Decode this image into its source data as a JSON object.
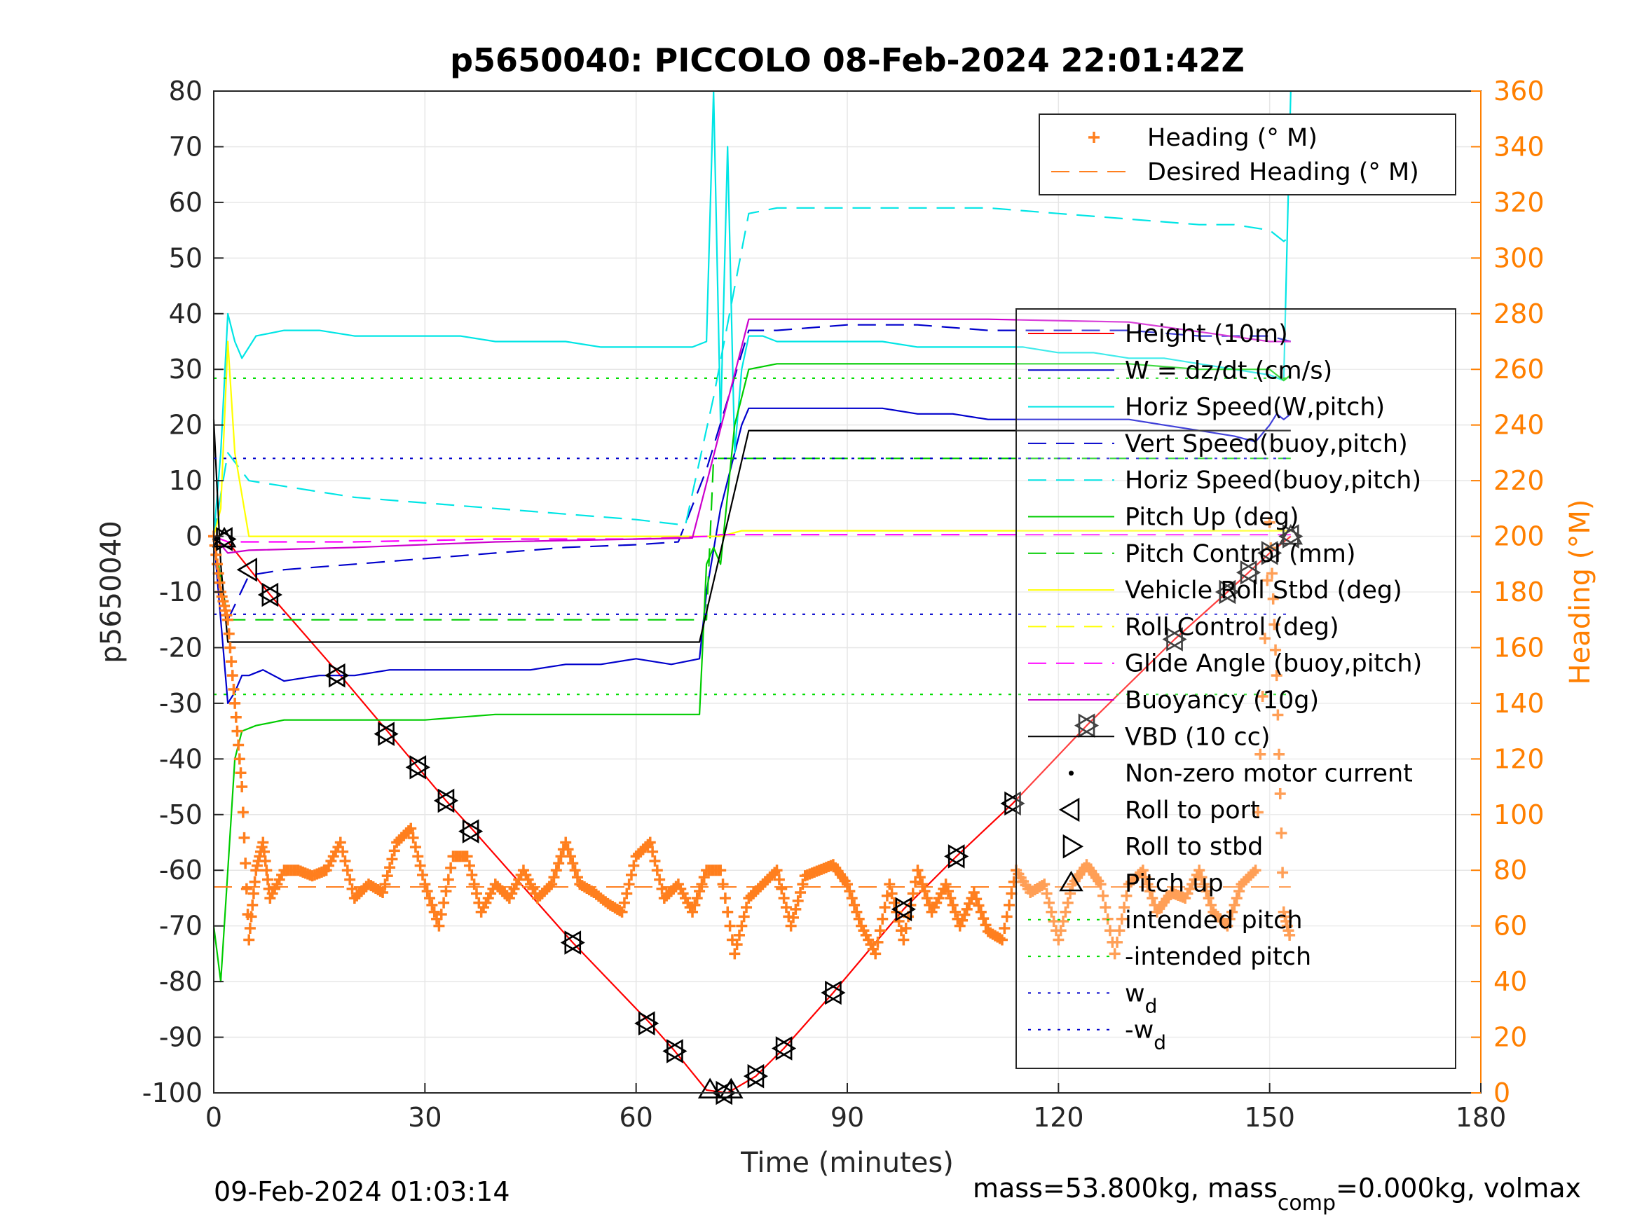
{
  "chart_data": {
    "type": "line",
    "title": "p5650040: PICCOLO 08-Feb-2024 22:01:42Z",
    "xlabel": "Time (minutes)",
    "ylabel": "p5650040",
    "ylabel_right": "Heading (°M)",
    "xlim": [
      0,
      180
    ],
    "ylim": [
      -100,
      80
    ],
    "ylim_right": [
      0,
      360
    ],
    "xticks": [
      "0",
      "30",
      "60",
      "90",
      "120",
      "150",
      "180"
    ],
    "yticks": [
      "-100",
      "-90",
      "-80",
      "-70",
      "-60",
      "-50",
      "-40",
      "-30",
      "-20",
      "-10",
      "0",
      "10",
      "20",
      "30",
      "40",
      "50",
      "60",
      "70",
      "80"
    ],
    "yticks_right": [
      "0",
      "20",
      "40",
      "60",
      "80",
      "100",
      "120",
      "140",
      "160",
      "180",
      "200",
      "220",
      "240",
      "260",
      "280",
      "300",
      "320",
      "340",
      "360"
    ],
    "grid": true,
    "legend_heading": [
      {
        "label": "Heading (° M)",
        "color": "#ff7f1e",
        "style": "plus"
      },
      {
        "label": "Desired Heading (° M)",
        "color": "#ff7f1e",
        "style": "dash"
      }
    ],
    "legend_main": [
      {
        "label": "Height (10m)",
        "color": "#ff0000",
        "style": "solid"
      },
      {
        "label": "W = dz/dt (cm/s)",
        "color": "#0000cc",
        "style": "solid"
      },
      {
        "label": "Horiz Speed(W,pitch)",
        "color": "#00e5e5",
        "style": "solid"
      },
      {
        "label": "Vert Speed(buoy,pitch)",
        "color": "#0000cc",
        "style": "dash"
      },
      {
        "label": "Horiz Speed(buoy,pitch)",
        "color": "#00e5e5",
        "style": "dash"
      },
      {
        "label": "Pitch Up (deg)",
        "color": "#00cc00",
        "style": "solid"
      },
      {
        "label": "Pitch Control (mm)",
        "color": "#00cc00",
        "style": "dash"
      },
      {
        "label": "Vehicle Roll Stbd (deg)",
        "color": "#ffff00",
        "style": "solid"
      },
      {
        "label": "Roll Control (deg)",
        "color": "#ffff00",
        "style": "dash"
      },
      {
        "label": "Glide Angle (buoy,pitch)",
        "color": "#ff00ff",
        "style": "dash"
      },
      {
        "label": "Buoyancy (10g)",
        "color": "#cc00cc",
        "style": "solid"
      },
      {
        "label": "VBD (10 cc)",
        "color": "#000000",
        "style": "solid"
      },
      {
        "label": "Non-zero motor current",
        "color": "#000000",
        "style": "dot"
      },
      {
        "label": "Roll to port",
        "color": "#000000",
        "style": "tri-left"
      },
      {
        "label": "Roll to stbd",
        "color": "#000000",
        "style": "tri-right"
      },
      {
        "label": "Pitch up",
        "color": "#000000",
        "style": "tri-up"
      },
      {
        "label": "intended pitch",
        "color": "#00dd00",
        "style": "dotted"
      },
      {
        "label": "-intended pitch",
        "color": "#00dd00",
        "style": "dotted"
      },
      {
        "label": "w_d",
        "color": "#0000cc",
        "style": "dotted"
      },
      {
        "label": "-w_d",
        "color": "#0000cc",
        "style": "dotted"
      }
    ],
    "series": [
      {
        "name": "Height (10m)",
        "color": "#ff0000",
        "x": [
          0,
          2,
          8,
          18,
          25,
          29,
          33,
          37,
          51,
          62,
          65.5,
          70,
          73,
          77,
          81,
          88,
          98,
          105.5,
          113.5,
          124,
          136.5,
          144,
          147,
          150,
          153
        ],
        "y": [
          0,
          -1,
          -10.5,
          -25,
          -35.5,
          -41.5,
          -47.5,
          -53,
          -73,
          -87.5,
          -92.5,
          -99.5,
          -100,
          -97,
          -92,
          -82,
          -67,
          -57.5,
          -48,
          -34,
          -18.5,
          -10,
          -6.5,
          -3,
          0
        ]
      },
      {
        "name": "W = dz/dt (cm/s)",
        "color": "#0000cc",
        "x": [
          0,
          1,
          2,
          3,
          4,
          5,
          7,
          10,
          15,
          20,
          25,
          30,
          35,
          40,
          45,
          50,
          55,
          60,
          65,
          69,
          70,
          72,
          74,
          75,
          76,
          80,
          85,
          90,
          95,
          100,
          105,
          110,
          115,
          120,
          125,
          130,
          135,
          140,
          145,
          148,
          150,
          151,
          152,
          153
        ],
        "y": [
          0,
          -15,
          -30,
          -28,
          -25,
          -25,
          -24,
          -26,
          -25,
          -25,
          -24,
          -24,
          -24,
          -24,
          -24,
          -23,
          -23,
          -22,
          -23,
          -22,
          -10,
          5,
          15,
          20,
          23,
          23,
          23,
          23,
          23,
          22,
          22,
          21,
          21,
          21,
          21,
          21,
          20,
          19,
          18,
          17,
          20,
          22,
          21,
          22
        ]
      },
      {
        "name": "Horiz Speed(W,pitch)",
        "color": "#00e5e5",
        "x": [
          0,
          1,
          2,
          3,
          4,
          6,
          10,
          15,
          20,
          25,
          30,
          35,
          40,
          45,
          50,
          55,
          60,
          65,
          68,
          70,
          71,
          72,
          73,
          74,
          75,
          76,
          78,
          80,
          85,
          90,
          95,
          100,
          105,
          110,
          115,
          120,
          125,
          130,
          135,
          140,
          145,
          150,
          152,
          153
        ],
        "y": [
          0,
          15,
          40,
          35,
          32,
          36,
          37,
          37,
          36,
          36,
          36,
          36,
          35,
          35,
          35,
          34,
          34,
          34,
          34,
          35,
          80,
          20,
          70,
          15,
          30,
          36,
          36,
          35,
          35,
          35,
          35,
          34,
          34,
          34,
          34,
          33,
          33,
          32,
          32,
          31,
          30,
          29,
          28,
          80
        ]
      },
      {
        "name": "Vert Speed(buoy,pitch)",
        "color": "#0000cc",
        "dash": "26,14",
        "x": [
          0,
          2,
          5,
          10,
          20,
          30,
          40,
          50,
          60,
          66,
          70,
          76,
          80,
          90,
          100,
          110,
          120,
          130,
          140,
          150,
          153
        ],
        "y": [
          0,
          -15,
          -7,
          -6,
          -5,
          -4,
          -3,
          -2,
          -1.5,
          -1,
          12,
          37,
          37,
          38,
          38,
          37,
          37,
          37,
          36,
          36,
          35
        ]
      },
      {
        "name": "Horiz Speed(buoy,pitch)",
        "color": "#00e5e5",
        "dash": "26,14",
        "x": [
          0,
          2,
          5,
          10,
          20,
          30,
          40,
          50,
          60,
          67,
          71,
          76,
          80,
          90,
          100,
          110,
          120,
          130,
          140,
          145,
          150,
          152,
          153
        ],
        "y": [
          0,
          15,
          10,
          9,
          7,
          6,
          5,
          4,
          3,
          2,
          25,
          58,
          59,
          59,
          59,
          59,
          58,
          57,
          56,
          56,
          55,
          53,
          54
        ]
      },
      {
        "name": "Pitch Up (deg)",
        "color": "#00cc00",
        "x": [
          0,
          1,
          2,
          3,
          4,
          6,
          10,
          20,
          30,
          40,
          50,
          60,
          65,
          69,
          70,
          71,
          72,
          74,
          76,
          80,
          90,
          100,
          110,
          120,
          130,
          140,
          150,
          152,
          153
        ],
        "y": [
          -70,
          -80,
          -60,
          -40,
          -35,
          -34,
          -33,
          -33,
          -33,
          -32,
          -32,
          -32,
          -32,
          -32,
          -5,
          -2,
          -5,
          20,
          30,
          31,
          31,
          31,
          31,
          31,
          31,
          30,
          30,
          28,
          29
        ]
      },
      {
        "name": "Pitch Control (mm)",
        "color": "#00cc00",
        "dash": "26,14",
        "x": [
          0,
          2,
          5,
          70,
          71,
          72,
          153
        ],
        "y": [
          0,
          -15,
          -15,
          -15,
          14,
          14,
          14
        ]
      },
      {
        "name": "Vehicle Roll Stbd (deg)",
        "color": "#ffff00",
        "x": [
          0,
          1,
          2,
          3,
          5,
          10,
          20,
          30,
          40,
          50,
          60,
          70,
          72,
          75,
          80,
          90,
          100,
          110,
          120,
          130,
          140,
          150,
          153
        ],
        "y": [
          0,
          5,
          35,
          15,
          0,
          0,
          0,
          0,
          0,
          0,
          0,
          0,
          0,
          1,
          1,
          1,
          1,
          1,
          1,
          1,
          1,
          1,
          1
        ]
      },
      {
        "name": "Glide Angle (buoy,pitch)",
        "color": "#ff00ff",
        "dash": "26,14",
        "x": [
          0,
          2,
          5,
          20,
          40,
          60,
          70,
          72,
          153
        ],
        "y": [
          0,
          -1,
          -1,
          -1,
          -0.5,
          -0.5,
          0,
          0.3,
          0.3
        ]
      },
      {
        "name": "Buoyancy (10g)",
        "color": "#cc00cc",
        "x": [
          0,
          2,
          5,
          20,
          40,
          60,
          68,
          76,
          90,
          110,
          130,
          150,
          153
        ],
        "y": [
          0,
          -3,
          -2.5,
          -2,
          -1,
          -0.5,
          -0.3,
          39,
          39,
          39,
          38.5,
          35,
          35
        ]
      },
      {
        "name": "VBD (10 cc)",
        "color": "#000000",
        "x": [
          0,
          1,
          2,
          69,
          76,
          100,
          140,
          153
        ],
        "y": [
          21,
          -5,
          -19,
          -19,
          19,
          19,
          19,
          19
        ]
      },
      {
        "name": "intended pitch",
        "color": "#00dd00",
        "dash": "4,10",
        "x": [
          0,
          153
        ],
        "y": [
          28.4,
          28.4
        ]
      },
      {
        "name": "-intended pitch",
        "color": "#00dd00",
        "dash": "4,10",
        "x": [
          0,
          153
        ],
        "y": [
          -28.4,
          -28.4
        ]
      },
      {
        "name": "w_d",
        "color": "#0000cc",
        "dash": "4,10",
        "x": [
          0,
          153
        ],
        "y": [
          14,
          14
        ]
      },
      {
        "name": "-w_d",
        "color": "#0000cc",
        "dash": "4,10",
        "x": [
          0,
          153
        ],
        "y": [
          -14,
          -14
        ]
      }
    ],
    "heading": {
      "name": "Heading (° M)",
      "color": "#ff7f1e",
      "x": [
        0,
        1,
        2,
        3,
        4,
        5,
        6,
        7,
        8,
        10,
        12,
        14,
        16,
        18,
        20,
        22,
        24,
        26,
        28,
        30,
        32,
        34,
        36,
        38,
        40,
        42,
        44,
        46,
        48,
        50,
        52,
        54,
        56,
        58,
        60,
        62,
        64,
        66,
        68,
        70,
        72,
        74,
        76,
        78,
        80,
        82,
        84,
        86,
        88,
        90,
        92,
        94,
        96,
        98,
        100,
        102,
        104,
        106,
        108,
        110,
        112,
        114,
        116,
        118,
        120,
        122,
        124,
        126,
        128,
        130,
        132,
        134,
        136,
        138,
        140,
        142,
        144,
        146,
        148,
        150,
        151,
        152,
        153
      ],
      "y": [
        200,
        180,
        170,
        140,
        110,
        55,
        80,
        90,
        70,
        80,
        80,
        78,
        80,
        90,
        70,
        75,
        72,
        90,
        95,
        75,
        60,
        85,
        85,
        65,
        75,
        70,
        80,
        70,
        75,
        90,
        75,
        72,
        68,
        65,
        85,
        90,
        70,
        75,
        65,
        80,
        80,
        50,
        70,
        75,
        80,
        60,
        78,
        80,
        82,
        75,
        60,
        50,
        75,
        55,
        80,
        65,
        75,
        60,
        72,
        58,
        55,
        80,
        72,
        75,
        55,
        75,
        82,
        75,
        50,
        75,
        80,
        65,
        72,
        70,
        80,
        65,
        60,
        75,
        80,
        205,
        150,
        65,
        55
      ]
    },
    "desired_heading": {
      "name": "Desired Heading (° M)",
      "color": "#ff7f1e",
      "x": [
        0,
        153
      ],
      "y": [
        74,
        74
      ]
    },
    "markers": [
      {
        "x": 1.5,
        "y": -0.5,
        "kind": "up+port+stbd"
      },
      {
        "x": 5,
        "y": -6,
        "kind": "port"
      },
      {
        "x": 8,
        "y": -10.5,
        "kind": "port+stbd"
      },
      {
        "x": 17.5,
        "y": -25,
        "kind": "port+stbd"
      },
      {
        "x": 24.5,
        "y": -35.5,
        "kind": "port+stbd"
      },
      {
        "x": 29,
        "y": -41.5,
        "kind": "port+stbd"
      },
      {
        "x": 33,
        "y": -47.5,
        "kind": "port+stbd"
      },
      {
        "x": 36.5,
        "y": -53,
        "kind": "port+stbd"
      },
      {
        "x": 51,
        "y": -73,
        "kind": "port+stbd"
      },
      {
        "x": 61.5,
        "y": -87.5,
        "kind": "port+stbd"
      },
      {
        "x": 65.5,
        "y": -92.5,
        "kind": "port+stbd"
      },
      {
        "x": 70.5,
        "y": -99.5,
        "kind": "up"
      },
      {
        "x": 72.5,
        "y": -100,
        "kind": "port+stbd"
      },
      {
        "x": 73.5,
        "y": -99.5,
        "kind": "up"
      },
      {
        "x": 77,
        "y": -97,
        "kind": "port+stbd"
      },
      {
        "x": 81,
        "y": -92,
        "kind": "port+stbd"
      },
      {
        "x": 88,
        "y": -82,
        "kind": "port+stbd"
      },
      {
        "x": 98,
        "y": -67,
        "kind": "port+stbd"
      },
      {
        "x": 105.5,
        "y": -57.5,
        "kind": "port+stbd"
      },
      {
        "x": 113.5,
        "y": -48,
        "kind": "port+stbd"
      },
      {
        "x": 124,
        "y": -34,
        "kind": "port+stbd"
      },
      {
        "x": 136.5,
        "y": -18.5,
        "kind": "port+stbd"
      },
      {
        "x": 144,
        "y": -10,
        "kind": "port+stbd"
      },
      {
        "x": 147,
        "y": -6.5,
        "kind": "port+stbd"
      },
      {
        "x": 150,
        "y": -3,
        "kind": "port+stbd"
      },
      {
        "x": 153,
        "y": 0,
        "kind": "port+stbd+up"
      }
    ],
    "footer_left": "09-Feb-2024 01:03:14",
    "footer_right_pre": "mass=53.800kg, mass",
    "footer_right_sub": "comp",
    "footer_right_post": "=0.000kg, volmax"
  }
}
